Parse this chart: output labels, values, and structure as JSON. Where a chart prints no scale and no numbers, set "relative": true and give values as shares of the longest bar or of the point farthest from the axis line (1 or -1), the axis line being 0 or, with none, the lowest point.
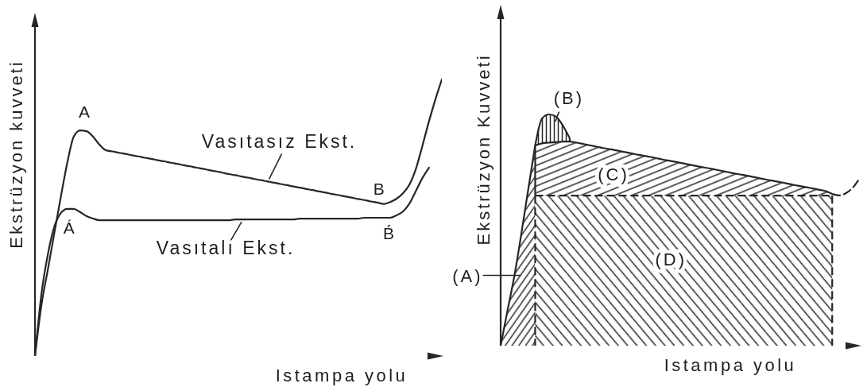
{
  "chart_data": [
    {
      "type": "line",
      "relative": true,
      "tick_labels": false,
      "xlabel": "Istampa yolu",
      "ylabel": "Ekstrüzyon kuvveti",
      "annotations": [
        "A",
        "Á",
        "B",
        "B́"
      ],
      "categories": [
        null,
        null,
        null,
        null,
        null,
        null,
        null,
        null,
        null,
        null,
        null,
        null,
        null,
        null,
        null,
        null,
        null,
        null,
        null,
        null,
        null,
        null,
        null,
        null,
        null,
        null,
        null,
        null,
        null,
        null,
        null,
        null,
        null,
        null,
        null,
        null,
        null,
        null,
        null,
        null,
        null,
        null,
        null,
        null,
        null,
        null,
        null,
        null,
        null,
        null,
        null,
        null,
        null,
        null,
        null,
        null,
        null,
        null,
        null,
        null,
        null,
        null,
        null,
        null
      ],
      "series": [
        {
          "name": "Vasıtasız Ekst.",
          "color": "#262626",
          "values": [
            0,
            0.184,
            0.313,
            0.445,
            0.575,
            0.698,
            0.793,
            0.816,
            0.813,
            0.793,
            0.764,
            0.744,
            0.74,
            0.735,
            0.731,
            0.726,
            0.722,
            0.717,
            0.713,
            0.708,
            0.704,
            0.699,
            0.695,
            0.69,
            0.686,
            0.681,
            0.677,
            0.672,
            0.668,
            0.663,
            0.658,
            0.654,
            0.649,
            0.645,
            0.64,
            0.636,
            0.631,
            0.627,
            0.622,
            0.618,
            0.613,
            0.609,
            0.604,
            0.6,
            0.595,
            0.591,
            0.586,
            0.582,
            0.577,
            0.573,
            0.568,
            0.564,
            0.559,
            0.555,
            0.55,
            0.557,
            0.569,
            0.589,
            0.621,
            0.678,
            0.761,
            0.848,
            0.928,
            1.0
          ]
        },
        {
          "name": "Vasıtalı Ekst.",
          "color": "#262626",
          "values": [
            0,
            0.224,
            0.368,
            0.468,
            0.517,
            0.532,
            0.532,
            0.52,
            0.506,
            0.497,
            0.491,
            0.491,
            0.491,
            0.491,
            0.491,
            0.491,
            0.491,
            0.491,
            0.491,
            0.491,
            0.491,
            0.491,
            0.491,
            0.491,
            0.491,
            0.491,
            0.491,
            0.491,
            0.491,
            0.491,
            0.491,
            0.494,
            0.494,
            0.494,
            0.494,
            0.494,
            0.494,
            0.494,
            0.494,
            0.494,
            0.494,
            0.497,
            0.497,
            0.497,
            0.497,
            0.497,
            0.497,
            0.497,
            0.497,
            0.497,
            0.497,
            0.5,
            0.5,
            0.5,
            0.5,
            0.5,
            0.509,
            0.523,
            0.552,
            0.598,
            0.644,
            0.681,
            null,
            null
          ]
        }
      ]
    },
    {
      "type": "area",
      "relative": true,
      "tick_labels": false,
      "xlabel": "Istampa yolu",
      "ylabel": "Ekstrüzyon Kuvveti",
      "categories": [
        null,
        null,
        null,
        null,
        null,
        null,
        null,
        null,
        null,
        null,
        null,
        null,
        null,
        null,
        null,
        null,
        null,
        null,
        null,
        null,
        null,
        null,
        null,
        null,
        null,
        null,
        null,
        null,
        null,
        null,
        null,
        null,
        null,
        null,
        null,
        null,
        null,
        null,
        null,
        null,
        null,
        null,
        null,
        null,
        null,
        null,
        null,
        null,
        null,
        null,
        null,
        null,
        null
      ],
      "series": [
        {
          "name": "(A)",
          "color": "#262626",
          "values": [
            0,
            0.153,
            0.304,
            0.485,
            0.677,
            0.866,
            null,
            null,
            null,
            null,
            null,
            null,
            null,
            null,
            null,
            null,
            null,
            null,
            null,
            null,
            null,
            null,
            null,
            null,
            null,
            null,
            null,
            null,
            null,
            null,
            null,
            null,
            null,
            null,
            null,
            null,
            null,
            null,
            null,
            null,
            null,
            null,
            null,
            null,
            null,
            null,
            null,
            null,
            null,
            null,
            null,
            null,
            null
          ]
        },
        {
          "name": "(B)",
          "color": "#262626",
          "values": [
            null,
            null,
            null,
            null,
            null,
            0.866,
            0.983,
            1.0,
            0.991,
            0.952,
            0.897,
            null,
            null,
            null,
            null,
            null,
            null,
            null,
            null,
            null,
            null,
            null,
            null,
            null,
            null,
            null,
            null,
            null,
            null,
            null,
            null,
            null,
            null,
            null,
            null,
            null,
            null,
            null,
            null,
            null,
            null,
            null,
            null,
            null,
            null,
            null,
            null,
            null,
            null,
            null,
            null,
            null,
            null
          ]
        },
        {
          "name": "(C)",
          "color": "#262626",
          "values": [
            null,
            null,
            null,
            null,
            null,
            0.866,
            0.875,
            0.878,
            0.88,
            0.883,
            0.883,
            0.878,
            0.872,
            0.866,
            0.86,
            0.854,
            0.849,
            0.843,
            0.837,
            0.831,
            0.825,
            0.82,
            0.814,
            0.808,
            0.802,
            0.797,
            0.791,
            0.785,
            0.779,
            0.773,
            0.768,
            0.762,
            0.756,
            0.75,
            0.744,
            0.739,
            0.733,
            0.727,
            0.721,
            0.715,
            0.71,
            0.704,
            0.698,
            0.692,
            0.687,
            0.681,
            0.675,
            0.669,
            0.656,
            null,
            null,
            null,
            null
          ]
        },
        {
          "name": "(D)",
          "color": "#262626",
          "line_style": "dashed",
          "values": [
            null,
            null,
            null,
            null,
            null,
            0.649,
            0.649,
            0.649,
            0.649,
            0.649,
            0.649,
            0.649,
            0.649,
            0.649,
            0.649,
            0.649,
            0.649,
            0.649,
            0.649,
            0.649,
            0.649,
            0.649,
            0.649,
            0.649,
            0.649,
            0.649,
            0.649,
            0.649,
            0.649,
            0.649,
            0.649,
            0.649,
            0.649,
            0.649,
            0.649,
            0.649,
            0.649,
            0.649,
            0.649,
            0.649,
            0.649,
            0.649,
            0.649,
            0.649,
            0.649,
            0.649,
            0.649,
            0.649,
            0.649,
            null,
            null,
            null,
            null
          ]
        },
        {
          "type": "line",
          "color": "#262626",
          "line_style": "dashed",
          "values": [
            null,
            null,
            null,
            null,
            null,
            null,
            null,
            null,
            null,
            null,
            null,
            null,
            null,
            null,
            null,
            null,
            null,
            null,
            null,
            null,
            null,
            null,
            null,
            null,
            null,
            null,
            null,
            null,
            null,
            null,
            null,
            null,
            null,
            null,
            null,
            null,
            null,
            null,
            null,
            null,
            null,
            null,
            null,
            null,
            null,
            null,
            null,
            null,
            0.656,
            0.65,
            0.66,
            0.684,
            0.725
          ]
        }
      ]
    }
  ]
}
